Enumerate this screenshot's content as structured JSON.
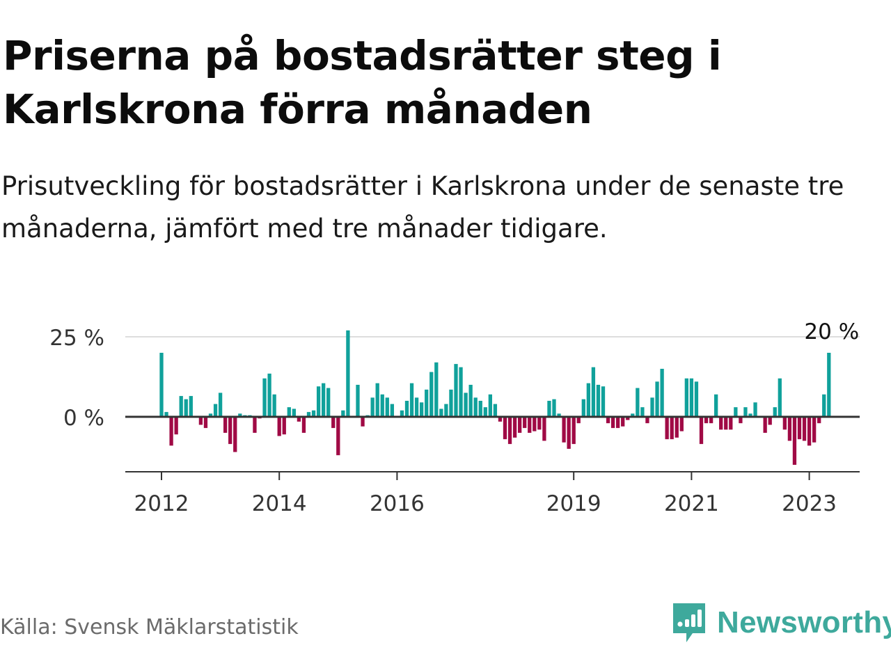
{
  "title": "Priserna på bostadsrätter steg i Karlskrona förra månaden",
  "subtitle": "Prisutveckling för bostadsrätter i Karlskrona under de senaste tre månaderna, jämfört med tre månader tidigare.",
  "source": "Källa: Svensk Mäklarstatistik",
  "brand": {
    "name": "Newsworthy",
    "icon": "newsworthy-logo-icon",
    "color": "#3ea99c"
  },
  "colors": {
    "positive": "#10a19b",
    "negative": "#a00a45",
    "grid": "#dddddd",
    "axis": "#333333"
  },
  "chart_data": {
    "type": "bar",
    "ylim": [
      -14,
      27
    ],
    "y_ticks": [
      {
        "value": 0,
        "label": "0 %"
      },
      {
        "value": 25,
        "label": "25 %"
      }
    ],
    "x_ticks": [
      {
        "year": 2012,
        "label": "2012"
      },
      {
        "year": 2014,
        "label": "2014"
      },
      {
        "year": 2016,
        "label": "2016"
      },
      {
        "year": 2019,
        "label": "2019"
      },
      {
        "year": 2021,
        "label": "2021"
      },
      {
        "year": 2023,
        "label": "2023"
      }
    ],
    "start": "2012-01",
    "values": [
      20,
      1.5,
      -9,
      -5.5,
      6.5,
      5.5,
      6.5,
      0,
      -2.5,
      -3.5,
      1,
      4,
      7.5,
      -5,
      -8.5,
      -11,
      1,
      0.5,
      0.5,
      -5,
      -0.5,
      12,
      13.5,
      7,
      -6,
      -5.5,
      3,
      2.5,
      -1.5,
      -5,
      1.5,
      2,
      9.5,
      10.5,
      9,
      -3.5,
      -12,
      2,
      27,
      0,
      10,
      -3,
      0.5,
      6,
      10.5,
      7,
      6,
      4,
      0,
      2,
      5,
      10.5,
      6,
      4.5,
      8.5,
      14,
      17,
      2.5,
      4,
      8.5,
      16.5,
      15.5,
      7.5,
      10,
      6,
      5,
      3,
      7,
      4,
      -1.5,
      -7,
      -8.5,
      -6.5,
      -5,
      -3.5,
      -5,
      -4.5,
      -4,
      -7.5,
      5,
      5.5,
      1,
      -8,
      -10,
      -8.5,
      -2,
      5.5,
      10.5,
      15.5,
      10,
      9.5,
      -2,
      -3.5,
      -3.5,
      -3,
      -1,
      1,
      9,
      3,
      -2,
      6,
      11,
      15,
      -7,
      -7,
      -6.5,
      -4.5,
      12,
      12,
      11,
      -8.5,
      -2,
      -2,
      7,
      -4,
      -4,
      -4,
      3,
      -2,
      3,
      1,
      4.5,
      0,
      -5,
      -2.5,
      3,
      12,
      -4,
      -7.5,
      -15,
      -7,
      -7.5,
      -9,
      -8,
      -2,
      7,
      20
    ],
    "annotation": {
      "label": "20 %",
      "value": 20
    }
  }
}
